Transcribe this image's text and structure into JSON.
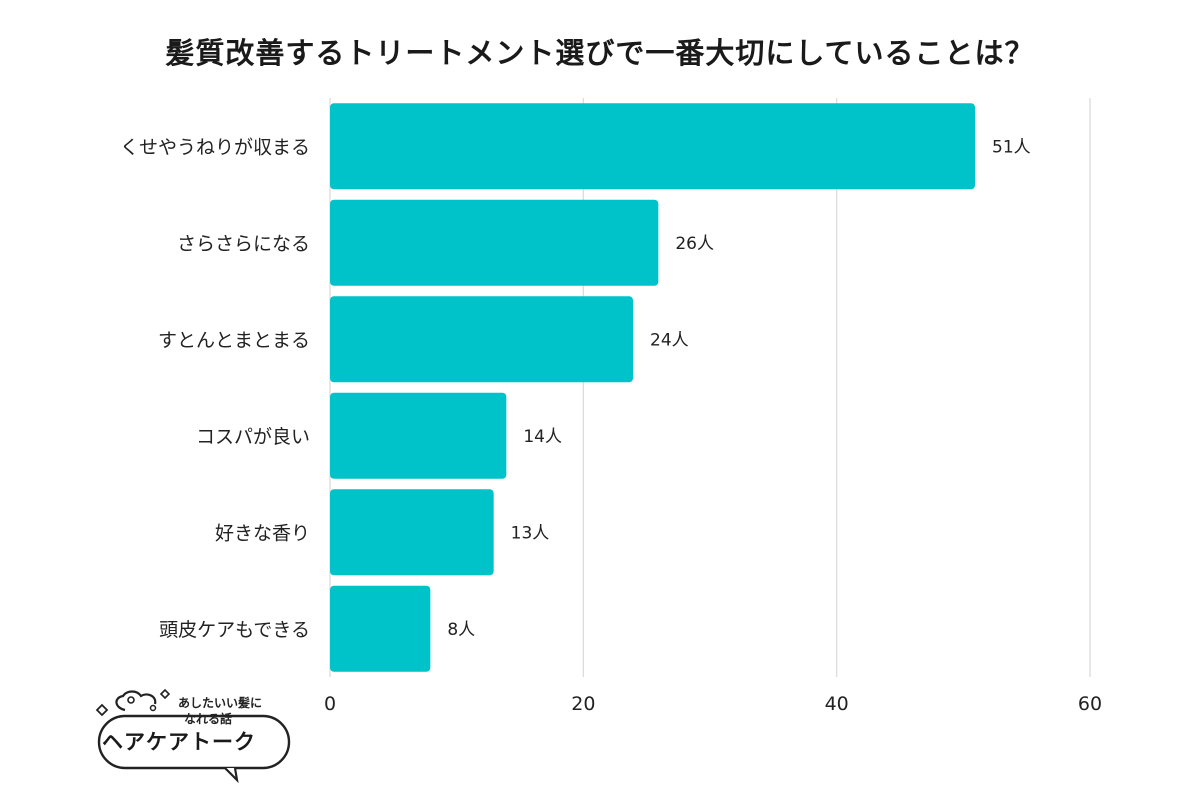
{
  "chart_data": {
    "type": "bar",
    "orientation": "horizontal",
    "title": "髪質改善するトリートメント選びで一番大切にしていることは？",
    "categories": [
      "くせやうねりが収まる",
      "さらさらになる",
      "すとんとまとまる",
      "コスパが良い",
      "好きな香り",
      "頭皮ケアもできる"
    ],
    "values": [
      51,
      26,
      24,
      14,
      13,
      8
    ],
    "value_suffix": "人",
    "xlim": [
      0,
      60
    ],
    "xticks": [
      0,
      20,
      40,
      60
    ],
    "grid": true,
    "bar_color": "#00c2c9"
  },
  "logo": {
    "tagline_line1": "あしたいい髪に",
    "tagline_line2": "なれる話",
    "name": "ヘアケアトーク"
  }
}
